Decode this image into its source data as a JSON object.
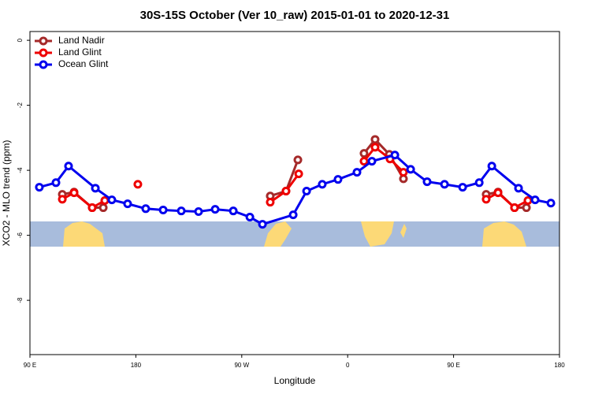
{
  "chart_data": {
    "type": "line",
    "title": "30S-15S October (Ver 10_raw)   2015-01-01 to 2020-12-31",
    "xlabel": "Longitude",
    "ylabel": "XCO2 - MLO trend (ppm)",
    "xlim": [
      90,
      540
    ],
    "ylim": [
      -9.67,
      0.27
    ],
    "xticks": [
      {
        "value": 90,
        "label": "90 E"
      },
      180,
      {
        "value": 270,
        "label": "90 W"
      },
      {
        "value": 360,
        "label": "0"
      },
      {
        "value": 450,
        "label": "90 E"
      },
      {
        "value": 540,
        "label": "180"
      }
    ],
    "yticks": [
      0,
      -2,
      -4,
      -6,
      -8
    ],
    "legend": "top-left",
    "series": [
      {
        "name": "Land Nadir",
        "color": "#a52a2a",
        "x": [
          117.5,
          127.5,
          142.9,
          152.3,
          null,
          294.2,
          307.6,
          317.7,
          null,
          373.9,
          383.3,
          395.4,
          407.4,
          null,
          477.7,
          487.8,
          501.8,
          511.9
        ],
        "values": [
          -4.74,
          -4.67,
          -5.15,
          -5.15,
          null,
          -4.79,
          -4.64,
          -3.68,
          null,
          -3.48,
          -3.05,
          -3.51,
          -4.26,
          null,
          -4.74,
          -4.67,
          -5.15,
          -5.15
        ]
      },
      {
        "name": "Land Glint",
        "color": "#ee0000",
        "x": [
          117.5,
          127.5,
          142.9,
          153.6,
          null,
          181.7,
          null,
          294.2,
          307.6,
          318.4,
          null,
          373.9,
          383.3,
          396.0,
          407.4,
          null,
          477.7,
          487.8,
          501.8,
          513.2
        ],
        "values": [
          -4.89,
          -4.69,
          -5.15,
          -4.93,
          null,
          -4.43,
          null,
          -4.98,
          -4.64,
          -4.11,
          null,
          -3.72,
          -3.29,
          -3.65,
          -4.06,
          null,
          -4.89,
          -4.69,
          -5.15,
          -4.93
        ]
      },
      {
        "name": "Ocean Glint",
        "color": "#0000ee",
        "x": [
          98.0,
          112.1,
          122.8,
          145.6,
          159.6,
          173.0,
          188.4,
          203.2,
          218.6,
          233.3,
          247.4,
          262.8,
          276.9,
          287.6,
          313.7,
          325.1,
          338.4,
          351.8,
          367.9,
          380.6,
          400.1,
          413.5,
          427.5,
          442.3,
          457.7,
          471.8,
          482.5,
          505.2,
          519.3,
          532.7
        ],
        "values": [
          -4.52,
          -4.38,
          -3.87,
          -4.55,
          -4.91,
          -5.03,
          -5.18,
          -5.22,
          -5.25,
          -5.27,
          -5.2,
          -5.25,
          -5.44,
          -5.66,
          -5.37,
          -4.64,
          -4.43,
          -4.28,
          -4.06,
          -3.72,
          -3.53,
          -3.97,
          -4.35,
          -4.43,
          -4.52,
          -4.38,
          -3.87,
          -4.55,
          -4.91,
          -5.01
        ]
      }
    ]
  }
}
